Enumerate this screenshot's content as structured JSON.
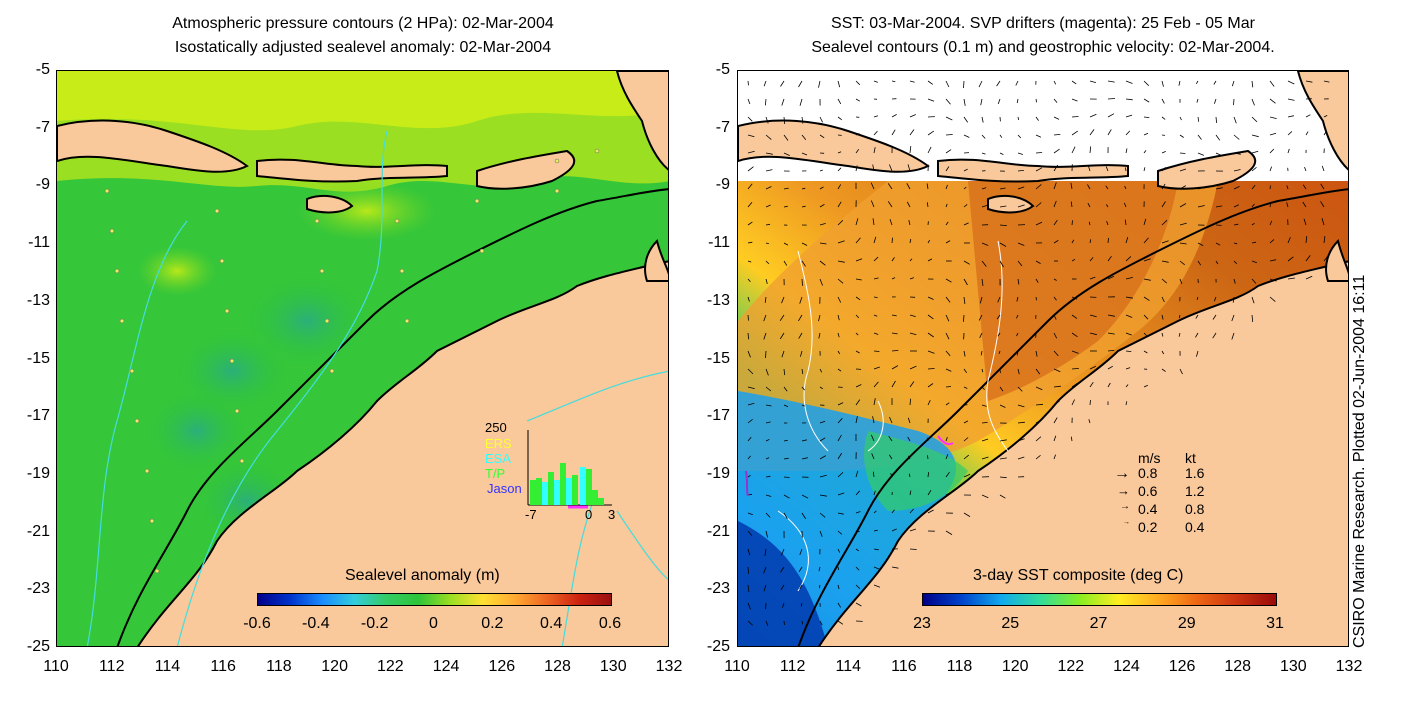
{
  "left_panel": {
    "title_line1": "Atmospheric pressure contours (2 HPa): 02-Mar-2004",
    "title_line2": "Isostatically adjusted sealevel anomaly: 02-Mar-2004",
    "colorbar_label": "Sealevel anomaly (m)",
    "colorbar_ticks": [
      "-0.6",
      "-0.4",
      "-0.2",
      "0",
      "0.2",
      "0.4",
      "0.6"
    ],
    "inset": {
      "ymax_label": "250",
      "legend": [
        "ERS",
        "ESA",
        "T/P",
        "Jason"
      ],
      "legend_colors": [
        "#ffff33",
        "#33ffff",
        "#33ff33",
        "#3333ff"
      ],
      "x_ticks": [
        "-7",
        "0",
        "3"
      ]
    }
  },
  "right_panel": {
    "title_line1": "SST: 03-Mar-2004. SVP drifters (magenta): 25 Feb - 05 Mar",
    "title_line2": "Sealevel contours (0.1 m) and geostrophic velocity: 02-Mar-2004.",
    "colorbar_label": "3-day SST composite (deg C)",
    "colorbar_ticks": [
      "23",
      "25",
      "27",
      "29",
      "31"
    ],
    "velocity_legend": {
      "header_ms": "m/s",
      "header_kt": "kt",
      "rows": [
        {
          "ms": "0.8",
          "kt": "1.6"
        },
        {
          "ms": "0.6",
          "kt": "1.2"
        },
        {
          "ms": "0.4",
          "kt": "0.8"
        },
        {
          "ms": "0.2",
          "kt": "0.4"
        }
      ]
    }
  },
  "axes": {
    "y_ticks": [
      "-5",
      "-7",
      "-9",
      "-11",
      "-13",
      "-15",
      "-17",
      "-19",
      "-21",
      "-23",
      "-25"
    ],
    "x_ticks": [
      "110",
      "112",
      "114",
      "116",
      "118",
      "120",
      "122",
      "124",
      "126",
      "128",
      "130",
      "132"
    ]
  },
  "credit": "CSIRO Marine Research. Plotted 02-Jun-2004 16:11",
  "colors": {
    "land": "#f9c89b",
    "ocean_green": "#2fc43a",
    "contour_cyan": "#44dddd"
  }
}
